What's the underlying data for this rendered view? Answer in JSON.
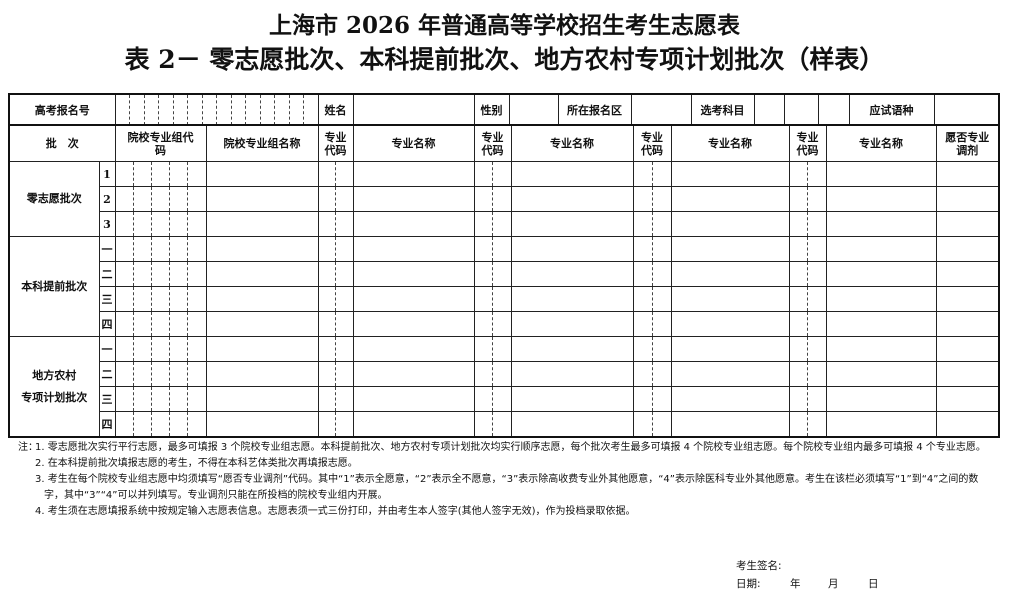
{
  "title": "上海市 2026 年普通高等学校招生考生志愿表",
  "subtitle": "表 2－ 零志愿批次、本科提前批次、地方农村专项计划批次（样表）",
  "info_row": {
    "exam_id_label": "高考报名号",
    "name_label": "姓名",
    "gender_label": "性别",
    "district_label": "所在报名区",
    "subjects_label": "选考科目",
    "language_label": "应试语种"
  },
  "headers": {
    "batch": "批　次",
    "group_code": "院校专业组代码",
    "group_name": "院校专业组名称",
    "major_code": "专业代码",
    "major_name": "专业名称",
    "adjust": "愿否专业调剂"
  },
  "batches": [
    {
      "name": "零志愿批次",
      "rows": [
        "1",
        "2",
        "3"
      ]
    },
    {
      "name": "本科提前批次",
      "rows": [
        "一",
        "二",
        "三",
        "四"
      ]
    },
    {
      "name": "地方农村\n专项计划批次",
      "rows": [
        "一",
        "二",
        "三",
        "四"
      ]
    }
  ],
  "notes": {
    "lead": "注：",
    "items": [
      "1. 零志愿批次实行平行志愿，最多可填报 3 个院校专业组志愿。本科提前批次、地方农村专项计划批次均实行顺序志愿，每个批次考生最多可填报 4 个院校专业组志愿。每个院校专业组内最多可填报 4 个专业志愿。",
      "2. 在本科提前批次填报志愿的考生，不得在本科艺体类批次再填报志愿。",
      "3. 考生在每个院校专业组志愿中均须填写“愿否专业调剂”代码。其中“1”表示全愿意，“2”表示全不愿意，“3”表示除高收费专业外其他愿意，“4”表示除医科专业外其他愿意。考生在该栏必须填写“1”到“4”之间的数字，其中“3”“4”可以并列填写。专业调剂只能在所投档的院校专业组内开展。",
      "4. 考生须在志愿填报系统中按规定输入志愿表信息。志愿表须一式三份打印，并由考生本人签字(其他人签字无效)，作为投档录取依据。"
    ]
  },
  "signature": {
    "sign_label": "考生签名:",
    "date_label": "日期:",
    "year": "年",
    "month": "月",
    "day": "日"
  }
}
